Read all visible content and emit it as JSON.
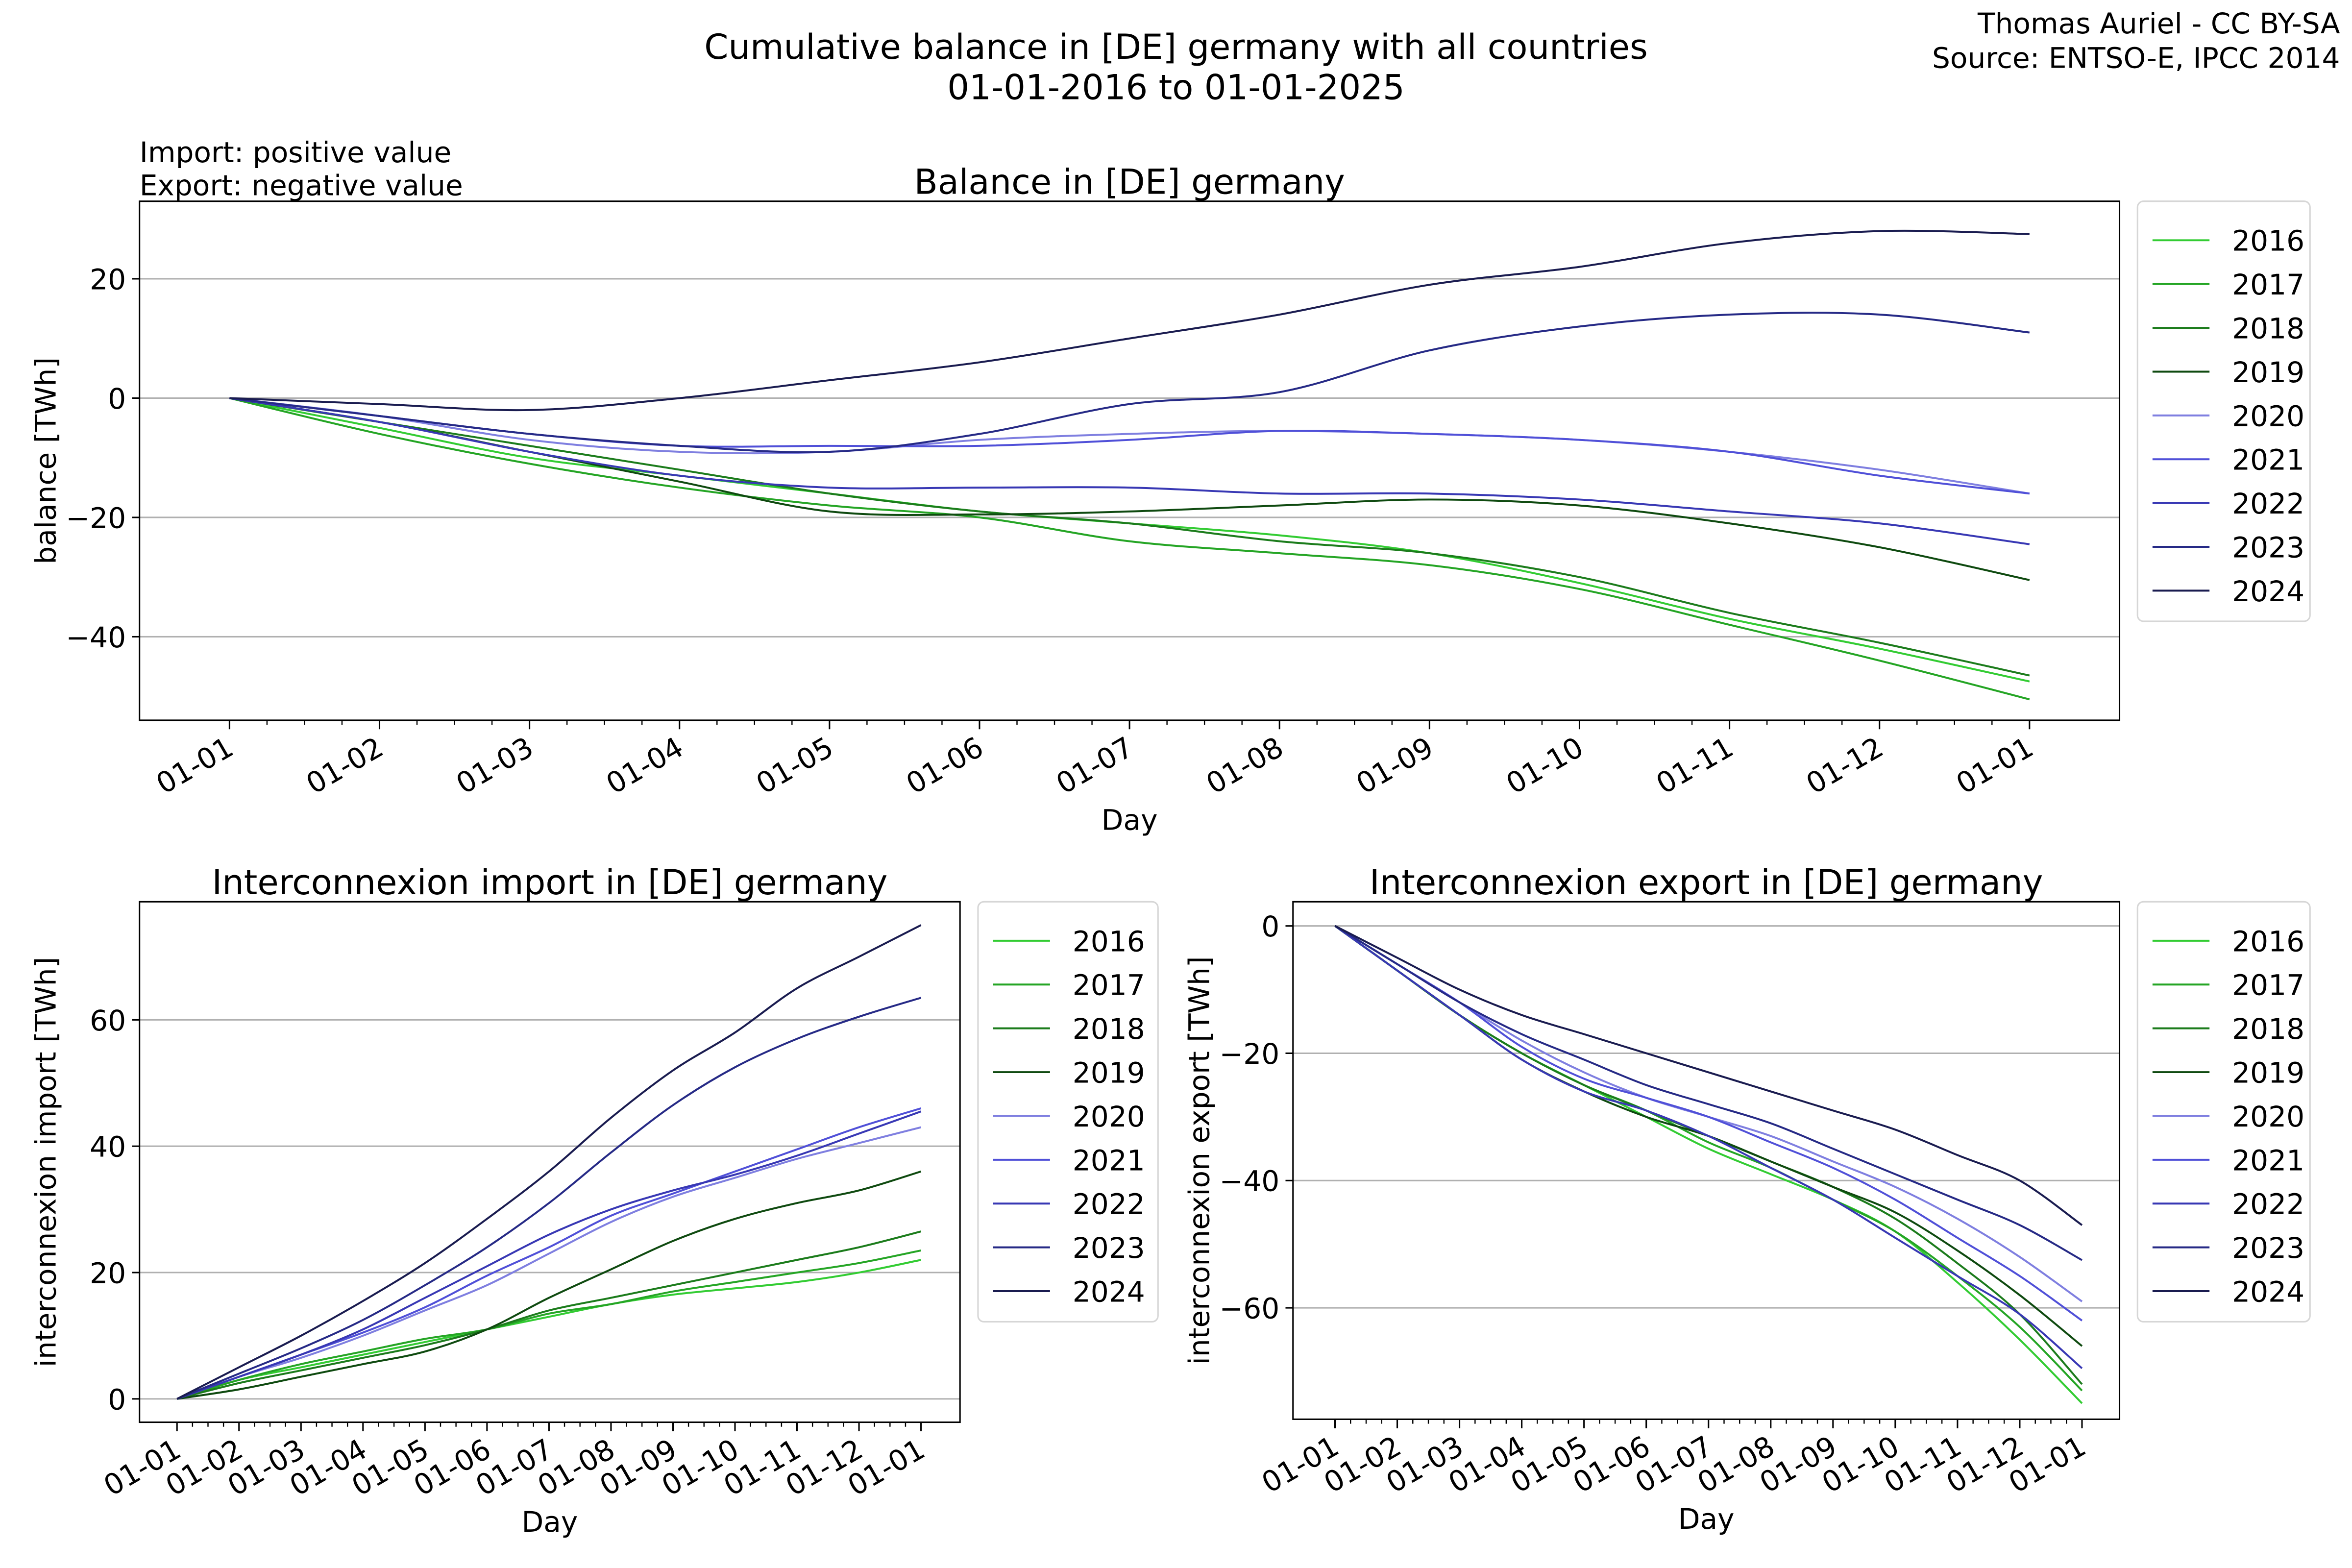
{
  "header": {
    "title_line1": "Cumulative balance in [DE] germany with all countries",
    "title_line2": "01-01-2016 to 01-01-2025",
    "credit_line1": "Thomas Auriel - CC BY-SA",
    "credit_line2": "Source: ENTSO-E, IPCC 2014",
    "note_line1": "Import: positive value",
    "note_line2": "Export: negative value"
  },
  "colors": {
    "2016": "#33cc33",
    "2017": "#25a525",
    "2018": "#1c7c1c",
    "2019": "#0f4a10",
    "2020": "#7f7fe0",
    "2021": "#5050d8",
    "2022": "#3838b4",
    "2023": "#262a86",
    "2024": "#1a1c50"
  },
  "chart_data": [
    {
      "type": "line",
      "title": "Balance in [DE] germany",
      "xlabel": "Day",
      "ylabel": "balance [TWh]",
      "x": [
        "01-01",
        "01-02",
        "01-03",
        "01-04",
        "01-05",
        "01-06",
        "01-07",
        "01-08",
        "01-09",
        "01-10",
        "01-11",
        "01-12",
        "01-01"
      ],
      "yticks": [
        20,
        0,
        -20,
        -40
      ],
      "ylim": [
        -54,
        33
      ],
      "grid": "horizontal",
      "legend": "outside-right",
      "series": [
        {
          "name": "2016",
          "values": [
            0,
            -5,
            -10,
            -13,
            -16,
            -19,
            -21,
            -23,
            -26,
            -31,
            -37,
            -42,
            -47.5
          ]
        },
        {
          "name": "2017",
          "values": [
            0,
            -6,
            -11,
            -15,
            -18,
            -20,
            -24,
            -26,
            -28,
            -32,
            -38,
            -44,
            -50.5
          ]
        },
        {
          "name": "2018",
          "values": [
            0,
            -4,
            -8,
            -12,
            -16,
            -19,
            -21,
            -24,
            -26,
            -30,
            -36,
            -41,
            -46.5
          ]
        },
        {
          "name": "2019",
          "values": [
            0,
            -4,
            -9,
            -14,
            -19,
            -19.5,
            -19,
            -18,
            -17,
            -18,
            -21,
            -25,
            -30.5
          ]
        },
        {
          "name": "2020",
          "values": [
            0,
            -3,
            -7,
            -9,
            -9,
            -7,
            -6,
            -5.5,
            -6,
            -7,
            -9,
            -12,
            -16
          ]
        },
        {
          "name": "2021",
          "values": [
            0,
            -3,
            -6,
            -8,
            -8,
            -8,
            -7,
            -5.5,
            -6,
            -7,
            -9,
            -13,
            -16
          ]
        },
        {
          "name": "2022",
          "values": [
            0,
            -4,
            -9,
            -13,
            -15,
            -15,
            -15,
            -16,
            -16,
            -17,
            -19,
            -21,
            -24.5
          ]
        },
        {
          "name": "2023",
          "values": [
            0,
            -3,
            -6,
            -8,
            -9,
            -6,
            -1,
            1,
            8,
            12,
            14,
            14,
            11
          ]
        },
        {
          "name": "2024",
          "values": [
            0,
            -1,
            -2,
            0,
            3,
            6,
            10,
            14,
            19,
            22,
            26,
            28,
            27.5
          ]
        }
      ]
    },
    {
      "type": "line",
      "title": "Interconnexion import in [DE] germany",
      "xlabel": "Day",
      "ylabel": "interconnexion import [TWh]",
      "x": [
        "01-01",
        "01-02",
        "01-03",
        "01-04",
        "01-05",
        "01-06",
        "01-07",
        "01-08",
        "01-09",
        "01-10",
        "01-11",
        "01-12",
        "01-01"
      ],
      "yticks": [
        0,
        20,
        40,
        60
      ],
      "ylim": [
        -3.7,
        78.7
      ],
      "grid": "horizontal",
      "legend": "outside-right",
      "series": [
        {
          "name": "2016",
          "values": [
            0,
            3,
            5,
            7,
            9,
            11,
            13,
            15,
            16.5,
            17.5,
            18.5,
            20,
            22
          ]
        },
        {
          "name": "2017",
          "values": [
            0,
            3,
            5.5,
            7.5,
            9.5,
            11,
            13.5,
            15,
            17,
            18.5,
            20,
            21.5,
            23.5
          ]
        },
        {
          "name": "2018",
          "values": [
            0,
            2.5,
            4.5,
            6.5,
            8.5,
            11,
            14,
            16,
            18,
            20,
            22,
            24,
            26.5
          ]
        },
        {
          "name": "2019",
          "values": [
            0,
            1.5,
            3.5,
            5.5,
            7.5,
            11,
            16,
            20.5,
            25,
            28.5,
            31,
            33,
            36
          ]
        },
        {
          "name": "2020",
          "values": [
            0,
            3.5,
            6.5,
            10,
            14,
            18,
            23,
            28,
            32,
            35,
            38,
            40.5,
            43
          ]
        },
        {
          "name": "2021",
          "values": [
            0,
            3.5,
            7,
            10.5,
            14.5,
            19.5,
            24,
            29,
            32.5,
            36,
            39.5,
            43,
            46
          ]
        },
        {
          "name": "2022",
          "values": [
            0,
            3.5,
            7,
            11,
            16,
            21,
            26,
            30,
            33,
            35.5,
            38.5,
            42,
            45.5
          ]
        },
        {
          "name": "2023",
          "values": [
            0,
            4,
            8,
            12.5,
            18,
            24,
            31,
            39,
            46.5,
            52.5,
            57,
            60.5,
            63.5
          ]
        },
        {
          "name": "2024",
          "values": [
            0,
            5,
            10,
            15.5,
            21.5,
            28.5,
            36,
            44.5,
            52,
            58,
            65,
            70,
            75
          ]
        }
      ]
    },
    {
      "type": "line",
      "title": "Interconnexion export in [DE] germany",
      "xlabel": "Day",
      "ylabel": "interconnexion export [TWh]",
      "x": [
        "01-01",
        "01-02",
        "01-03",
        "01-04",
        "01-05",
        "01-06",
        "01-07",
        "01-08",
        "01-09",
        "01-10",
        "01-11",
        "01-12",
        "01-01"
      ],
      "yticks": [
        0,
        -20,
        -40,
        -60
      ],
      "ylim": [
        -77.5,
        3.8
      ],
      "grid": "horizontal",
      "legend": "outside-right",
      "series": [
        {
          "name": "2016",
          "values": [
            0,
            -7,
            -14,
            -20,
            -25,
            -30,
            -35,
            -39,
            -43,
            -48,
            -56,
            -65,
            -75
          ]
        },
        {
          "name": "2017",
          "values": [
            0,
            -7,
            -14,
            -20,
            -25,
            -29,
            -34,
            -38,
            -43,
            -48,
            -55,
            -63,
            -73
          ]
        },
        {
          "name": "2018",
          "values": [
            0,
            -7,
            -14,
            -20,
            -25,
            -29,
            -33,
            -37,
            -41,
            -46,
            -53,
            -61,
            -72
          ]
        },
        {
          "name": "2019",
          "values": [
            0,
            -7,
            -14,
            -21,
            -26,
            -30,
            -33,
            -37,
            -41,
            -45,
            -51,
            -58,
            -66
          ]
        },
        {
          "name": "2020",
          "values": [
            0,
            -6,
            -12,
            -18,
            -23,
            -27,
            -30,
            -33,
            -37,
            -41,
            -46,
            -52,
            -59
          ]
        },
        {
          "name": "2021",
          "values": [
            0,
            -6,
            -12,
            -19,
            -24,
            -27,
            -30,
            -34,
            -38,
            -43,
            -49,
            -55,
            -62
          ]
        },
        {
          "name": "2022",
          "values": [
            0,
            -7,
            -14,
            -21,
            -26,
            -29,
            -33,
            -38,
            -43,
            -49,
            -55,
            -61,
            -69.5
          ]
        },
        {
          "name": "2023",
          "values": [
            0,
            -6,
            -12,
            -17,
            -21,
            -25,
            -28,
            -31,
            -35,
            -39,
            -43,
            -47,
            -52.5
          ]
        },
        {
          "name": "2024",
          "values": [
            0,
            -5,
            -10,
            -14,
            -17,
            -20,
            -23,
            -26,
            -29,
            -32,
            -36,
            -40,
            -47
          ]
        }
      ]
    }
  ]
}
